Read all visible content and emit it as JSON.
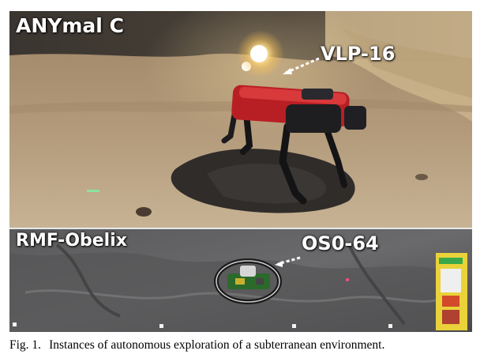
{
  "figure": {
    "top_panel": {
      "platform_label": "ANYmal C",
      "sensor_label": "VLP-16"
    },
    "bottom_panel": {
      "platform_label": "RMF-Obelix",
      "sensor_label": "OS0-64"
    },
    "caption": {
      "number": "Fig. 1.",
      "text": "Instances of autonomous exploration of a subterranean environment."
    }
  }
}
